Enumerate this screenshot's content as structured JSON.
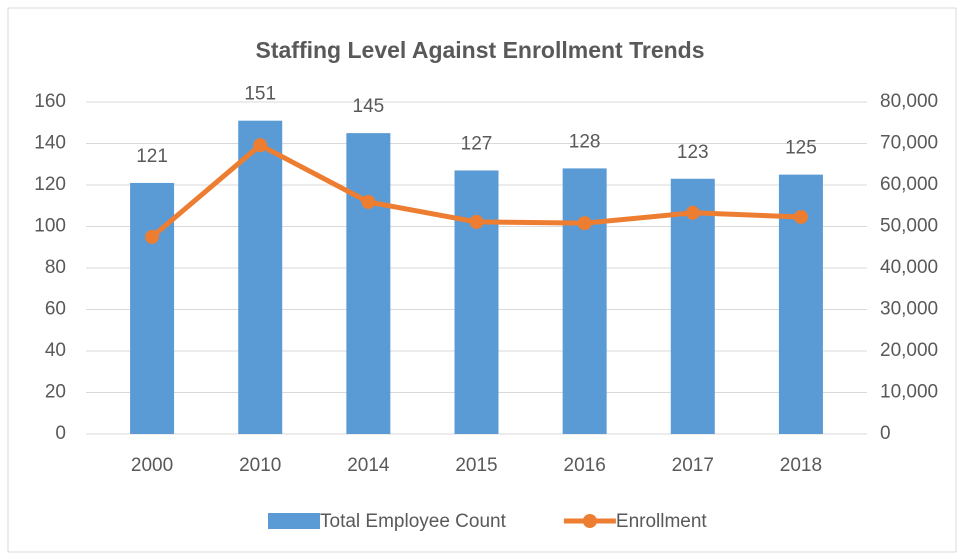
{
  "chart_data": {
    "type": "bar-line",
    "title": "Staffing Level Against Enrollment Trends",
    "categories": [
      "2000",
      "2010",
      "2014",
      "2015",
      "2016",
      "2017",
      "2018"
    ],
    "series": [
      {
        "name": "Total Employee Count",
        "type": "bar",
        "color": "#5b9bd5",
        "values": [
          121,
          151,
          145,
          127,
          128,
          123,
          125
        ]
      },
      {
        "name": "Enrollment",
        "type": "line",
        "axis": "y2",
        "color": "#ed7d31",
        "values": [
          47500,
          69600,
          55900,
          51100,
          50800,
          53300,
          52300
        ]
      }
    ],
    "ylim": [
      0,
      160
    ],
    "yticks": [
      0,
      20,
      40,
      60,
      80,
      100,
      120,
      140,
      160
    ],
    "y2lim": [
      0,
      80000
    ],
    "y2ticks": [
      0,
      {
        "value": 10000,
        "label": "10,000"
      },
      {
        "value": 20000,
        "label": "20,000"
      },
      {
        "value": 30000,
        "label": "30,000"
      },
      {
        "value": 40000,
        "label": "40,000"
      },
      {
        "value": 50000,
        "label": "50,000"
      },
      {
        "value": 60000,
        "label": "60,000"
      },
      {
        "value": 70000,
        "label": "70,000"
      },
      {
        "value": 80000,
        "label": "80,000"
      }
    ],
    "grid": true,
    "legend": "bottom"
  }
}
